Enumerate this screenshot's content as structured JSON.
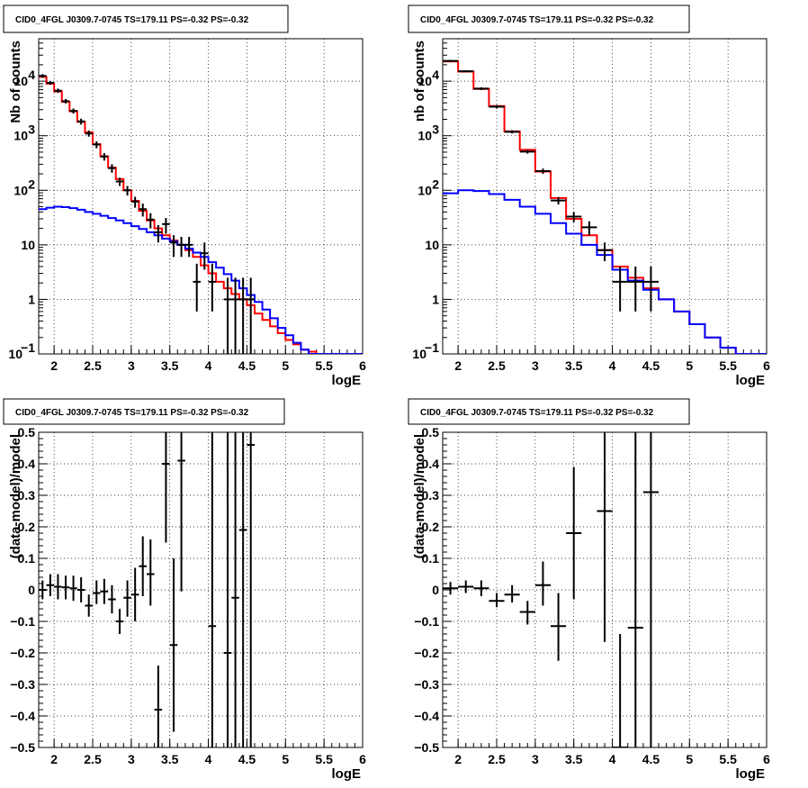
{
  "panel_title": "CID0_4FGL J0309.7-0745 TS=179.11 PS=-0.32 PS=-0.32",
  "colors": {
    "total_model": "#ff0000",
    "component_model": "#0000ff",
    "data": "#000000"
  },
  "chart_data": [
    {
      "type": "line",
      "title": "CID0_4FGL J0309.7-0745 TS=179.11 PS=-0.32 PS=-0.32",
      "xlabel": "logE",
      "ylabel": "Nb of counts",
      "xlim": [
        1.8,
        6.0
      ],
      "ylim": [
        0.1,
        60000
      ],
      "yscale": "log",
      "grid": true,
      "xticks": [
        "2",
        "2.5",
        "3",
        "3.5",
        "4",
        "4.5",
        "5",
        "5.5",
        "6"
      ],
      "yticks": [
        {
          "value": 0.1,
          "label": "10",
          "exp": "−1"
        },
        {
          "value": 1,
          "label": "1",
          "exp": ""
        },
        {
          "value": 10,
          "label": "10",
          "exp": ""
        },
        {
          "value": 100,
          "label": "10",
          "exp": "2"
        },
        {
          "value": 1000,
          "label": "10",
          "exp": "3"
        },
        {
          "value": 10000,
          "label": "10",
          "exp": "4"
        }
      ],
      "bin_edges": [
        1.8,
        1.9,
        2.0,
        2.1,
        2.2,
        2.3,
        2.4,
        2.5,
        2.6,
        2.7,
        2.8,
        2.9,
        3.0,
        3.1,
        3.2,
        3.3,
        3.4,
        3.5,
        3.6,
        3.7,
        3.8,
        3.9,
        4.0,
        4.1,
        4.2,
        4.3,
        4.4,
        4.5,
        4.6,
        4.7,
        4.8,
        4.9,
        5.0,
        5.1,
        5.2,
        5.3,
        5.4,
        5.5,
        5.6,
        5.7,
        5.8,
        5.9,
        6.0
      ],
      "series": [
        {
          "role": "total_model",
          "values": [
            12000,
            9000,
            6500,
            4200,
            2800,
            1800,
            1150,
            700,
            420,
            260,
            160,
            100,
            64,
            42,
            28,
            20,
            15,
            12,
            10,
            8,
            6,
            4.2,
            3.0,
            2.1,
            1.6,
            1.25,
            1.0,
            0.78,
            0.55,
            0.42,
            0.32,
            0.24,
            0.18,
            0.15,
            0.12,
            0.11,
            0.1,
            0.1,
            0.1,
            0.1,
            0.1,
            0.1
          ]
        },
        {
          "role": "component_model",
          "values": [
            45,
            48,
            50,
            49,
            47,
            44,
            40,
            37,
            34,
            31,
            28,
            25,
            22,
            19.5,
            17,
            15,
            13,
            11.5,
            10,
            8.5,
            7.2,
            6.0,
            4.8,
            3.8,
            2.9,
            2.2,
            1.6,
            1.2,
            0.9,
            0.65,
            0.45,
            0.3,
            0.22,
            0.16,
            0.12,
            0.1,
            0.1,
            0.1,
            0.1,
            0.1,
            0.1,
            0.1
          ]
        }
      ],
      "points": [
        {
          "x": 1.85,
          "y": 12500,
          "lo": 11500,
          "hi": 13500
        },
        {
          "x": 1.95,
          "y": 9300,
          "lo": 8600,
          "hi": 10000
        },
        {
          "x": 2.05,
          "y": 6700,
          "lo": 6100,
          "hi": 7300
        },
        {
          "x": 2.15,
          "y": 4300,
          "lo": 3900,
          "hi": 4700
        },
        {
          "x": 2.25,
          "y": 2850,
          "lo": 2550,
          "hi": 3150
        },
        {
          "x": 2.35,
          "y": 1830,
          "lo": 1600,
          "hi": 2050
        },
        {
          "x": 2.45,
          "y": 1100,
          "lo": 960,
          "hi": 1250
        },
        {
          "x": 2.55,
          "y": 690,
          "lo": 590,
          "hi": 790
        },
        {
          "x": 2.65,
          "y": 415,
          "lo": 350,
          "hi": 480
        },
        {
          "x": 2.75,
          "y": 255,
          "lo": 210,
          "hi": 300
        },
        {
          "x": 2.85,
          "y": 145,
          "lo": 120,
          "hi": 170
        },
        {
          "x": 2.95,
          "y": 100,
          "lo": 80,
          "hi": 120
        },
        {
          "x": 3.05,
          "y": 62,
          "lo": 48,
          "hi": 76
        },
        {
          "x": 3.15,
          "y": 45,
          "lo": 33,
          "hi": 57
        },
        {
          "x": 3.25,
          "y": 29,
          "lo": 20,
          "hi": 38
        },
        {
          "x": 3.35,
          "y": 17,
          "lo": 11,
          "hi": 23
        },
        {
          "x": 3.45,
          "y": 24,
          "lo": 16,
          "hi": 31
        },
        {
          "x": 3.55,
          "y": 11,
          "lo": 6,
          "hi": 15
        },
        {
          "x": 3.65,
          "y": 10,
          "lo": 6,
          "hi": 14
        },
        {
          "x": 3.75,
          "y": 10,
          "lo": 6,
          "hi": 14
        },
        {
          "x": 3.85,
          "y": 2.1,
          "lo": 0.6,
          "hi": 4.5
        },
        {
          "x": 3.95,
          "y": 7,
          "lo": 3.5,
          "hi": 11
        },
        {
          "x": 4.05,
          "y": 2.1,
          "lo": 0.6,
          "hi": 4.5
        },
        {
          "x": 4.25,
          "y": 1.0,
          "lo": 0.1,
          "hi": 2.5
        },
        {
          "x": 4.35,
          "y": 1.0,
          "lo": 0.1,
          "hi": 2.5
        },
        {
          "x": 4.45,
          "y": 1.0,
          "lo": 0.1,
          "hi": 2.5
        },
        {
          "x": 4.55,
          "y": 1.0,
          "lo": 0.1,
          "hi": 2.5
        }
      ]
    },
    {
      "type": "line",
      "title": "CID0_4FGL J0309.7-0745 TS=179.11 PS=-0.32 PS=-0.32",
      "xlabel": "logE",
      "ylabel": "nb of counts",
      "xlim": [
        1.8,
        6.0
      ],
      "ylim": [
        0.1,
        60000
      ],
      "yscale": "log",
      "grid": true,
      "xticks": [
        "2",
        "2.5",
        "3",
        "3.5",
        "4",
        "4.5",
        "5",
        "5.5",
        "6"
      ],
      "yticks": [
        {
          "value": 0.1,
          "label": "10",
          "exp": "−1"
        },
        {
          "value": 1,
          "label": "1",
          "exp": ""
        },
        {
          "value": 10,
          "label": "10",
          "exp": ""
        },
        {
          "value": 100,
          "label": "10",
          "exp": "2"
        },
        {
          "value": 1000,
          "label": "10",
          "exp": "3"
        },
        {
          "value": 10000,
          "label": "10",
          "exp": "4"
        }
      ],
      "bin_edges": [
        1.8,
        2.0,
        2.2,
        2.4,
        2.6,
        2.8,
        3.0,
        3.2,
        3.4,
        3.6,
        3.8,
        4.0,
        4.2,
        4.4,
        4.6,
        4.8,
        5.0,
        5.2,
        5.4,
        5.6,
        5.8,
        6.0
      ],
      "series": [
        {
          "role": "total_model",
          "values": [
            23000,
            15000,
            7200,
            3500,
            1200,
            550,
            220,
            72,
            30,
            15,
            8,
            4,
            2.5,
            1.6,
            1.0,
            0.6,
            0.35,
            0.2,
            0.13,
            0.1,
            0.1
          ]
        },
        {
          "role": "component_model",
          "values": [
            88,
            100,
            97,
            85,
            67,
            50,
            37,
            25,
            16,
            10,
            6.5,
            3.5,
            2.2,
            1.5,
            1.0,
            0.6,
            0.35,
            0.2,
            0.13,
            0.1,
            0.1
          ]
        }
      ],
      "points": [
        {
          "x": 1.9,
          "y": 23500,
          "lo": 22500,
          "hi": 24500
        },
        {
          "x": 2.1,
          "y": 15200,
          "lo": 14500,
          "hi": 15900
        },
        {
          "x": 2.3,
          "y": 7300,
          "lo": 6900,
          "hi": 7700
        },
        {
          "x": 2.5,
          "y": 3400,
          "lo": 3150,
          "hi": 3650
        },
        {
          "x": 2.7,
          "y": 1180,
          "lo": 1100,
          "hi": 1260
        },
        {
          "x": 2.9,
          "y": 510,
          "lo": 470,
          "hi": 550
        },
        {
          "x": 3.1,
          "y": 225,
          "lo": 200,
          "hi": 250
        },
        {
          "x": 3.3,
          "y": 65,
          "lo": 55,
          "hi": 75
        },
        {
          "x": 3.5,
          "y": 33,
          "lo": 26,
          "hi": 40
        },
        {
          "x": 3.7,
          "y": 21,
          "lo": 15,
          "hi": 27
        },
        {
          "x": 3.9,
          "y": 8,
          "lo": 5,
          "hi": 11
        },
        {
          "x": 4.1,
          "y": 2.1,
          "lo": 0.6,
          "hi": 4.0
        },
        {
          "x": 4.3,
          "y": 2.1,
          "lo": 0.6,
          "hi": 4.0
        },
        {
          "x": 4.5,
          "y": 2.1,
          "lo": 0.6,
          "hi": 4.0
        }
      ]
    },
    {
      "type": "scatter",
      "title": "CID0_4FGL J0309.7-0745 TS=179.11 PS=-0.32 PS=-0.32",
      "xlabel": "logE",
      "ylabel": "(data-model)/model",
      "xlim": [
        1.8,
        6.0
      ],
      "ylim": [
        -0.5,
        0.5
      ],
      "grid": true,
      "bin_width": 0.1,
      "xticks": [
        "2",
        "2.5",
        "3",
        "3.5",
        "4",
        "4.5",
        "5",
        "5.5",
        "6"
      ],
      "yticks": [
        "−0.5",
        "−0.4",
        "−0.3",
        "−0.2",
        "−0.1",
        "0",
        "0.1",
        "0.2",
        "0.3",
        "0.4",
        "0.5"
      ],
      "points": [
        {
          "x": 1.85,
          "y": 0.0,
          "lo": -0.03,
          "hi": 0.03
        },
        {
          "x": 1.95,
          "y": 0.015,
          "lo": -0.02,
          "hi": 0.05
        },
        {
          "x": 2.05,
          "y": 0.01,
          "lo": -0.03,
          "hi": 0.05
        },
        {
          "x": 2.15,
          "y": 0.008,
          "lo": -0.03,
          "hi": 0.045
        },
        {
          "x": 2.25,
          "y": 0.005,
          "lo": -0.035,
          "hi": 0.045
        },
        {
          "x": 2.35,
          "y": 0.0,
          "lo": -0.04,
          "hi": 0.04
        },
        {
          "x": 2.45,
          "y": -0.05,
          "lo": -0.085,
          "hi": -0.015
        },
        {
          "x": 2.55,
          "y": -0.01,
          "lo": -0.045,
          "hi": 0.03
        },
        {
          "x": 2.65,
          "y": -0.005,
          "lo": -0.045,
          "hi": 0.035
        },
        {
          "x": 2.75,
          "y": -0.03,
          "lo": -0.075,
          "hi": 0.015
        },
        {
          "x": 2.85,
          "y": -0.1,
          "lo": -0.14,
          "hi": -0.06
        },
        {
          "x": 2.95,
          "y": -0.025,
          "lo": -0.085,
          "hi": 0.03
        },
        {
          "x": 3.05,
          "y": -0.015,
          "lo": -0.1,
          "hi": 0.07
        },
        {
          "x": 3.15,
          "y": 0.075,
          "lo": -0.02,
          "hi": 0.17
        },
        {
          "x": 3.25,
          "y": 0.05,
          "lo": -0.05,
          "hi": 0.16
        },
        {
          "x": 3.35,
          "y": -0.38,
          "lo": -0.5,
          "hi": -0.24
        },
        {
          "x": 3.45,
          "y": 0.4,
          "lo": 0.15,
          "hi": 0.55
        },
        {
          "x": 3.55,
          "y": -0.175,
          "lo": -0.45,
          "hi": 0.1
        },
        {
          "x": 3.65,
          "y": 0.41,
          "lo": -0.005,
          "hi": 0.55
        },
        {
          "x": 4.05,
          "y": -0.115,
          "lo": -0.55,
          "hi": 0.55
        },
        {
          "x": 4.25,
          "y": -0.2,
          "lo": -0.55,
          "hi": 0.55
        },
        {
          "x": 4.35,
          "y": -0.025,
          "lo": -0.55,
          "hi": 0.55
        },
        {
          "x": 4.45,
          "y": 0.19,
          "lo": -0.55,
          "hi": 0.55
        },
        {
          "x": 4.55,
          "y": 0.46,
          "lo": -0.55,
          "hi": 0.55
        }
      ]
    },
    {
      "type": "scatter",
      "title": "CID0_4FGL J0309.7-0745 TS=179.11 PS=-0.32 PS=-0.32",
      "xlabel": "logE",
      "ylabel": "(data-model)/model",
      "xlim": [
        1.8,
        6.0
      ],
      "ylim": [
        -0.5,
        0.5
      ],
      "grid": true,
      "bin_width": 0.2,
      "xticks": [
        "2",
        "2.5",
        "3",
        "3.5",
        "4",
        "4.5",
        "5",
        "5.5",
        "6"
      ],
      "yticks": [
        "−0.5",
        "−0.4",
        "−0.3",
        "−0.2",
        "−0.1",
        "0",
        "0.1",
        "0.2",
        "0.3",
        "0.4",
        "0.5"
      ],
      "points": [
        {
          "x": 1.9,
          "y": 0.005,
          "lo": -0.015,
          "hi": 0.025
        },
        {
          "x": 2.1,
          "y": 0.01,
          "lo": -0.01,
          "hi": 0.03
        },
        {
          "x": 2.3,
          "y": 0.005,
          "lo": -0.02,
          "hi": 0.03
        },
        {
          "x": 2.5,
          "y": -0.035,
          "lo": -0.055,
          "hi": -0.01
        },
        {
          "x": 2.7,
          "y": -0.015,
          "lo": -0.04,
          "hi": 0.015
        },
        {
          "x": 2.9,
          "y": -0.07,
          "lo": -0.11,
          "hi": -0.035
        },
        {
          "x": 3.1,
          "y": 0.015,
          "lo": -0.05,
          "hi": 0.09
        },
        {
          "x": 3.3,
          "y": -0.115,
          "lo": -0.225,
          "hi": -0.01
        },
        {
          "x": 3.5,
          "y": 0.18,
          "lo": -0.03,
          "hi": 0.39
        },
        {
          "x": 3.9,
          "y": 0.25,
          "lo": -0.165,
          "hi": 0.55
        },
        {
          "x": 4.1,
          "y": -0.5,
          "lo": -0.5,
          "hi": -0.14
        },
        {
          "x": 4.3,
          "y": -0.12,
          "lo": -0.55,
          "hi": 0.55
        },
        {
          "x": 4.5,
          "y": 0.31,
          "lo": -0.55,
          "hi": 0.55
        }
      ]
    }
  ]
}
